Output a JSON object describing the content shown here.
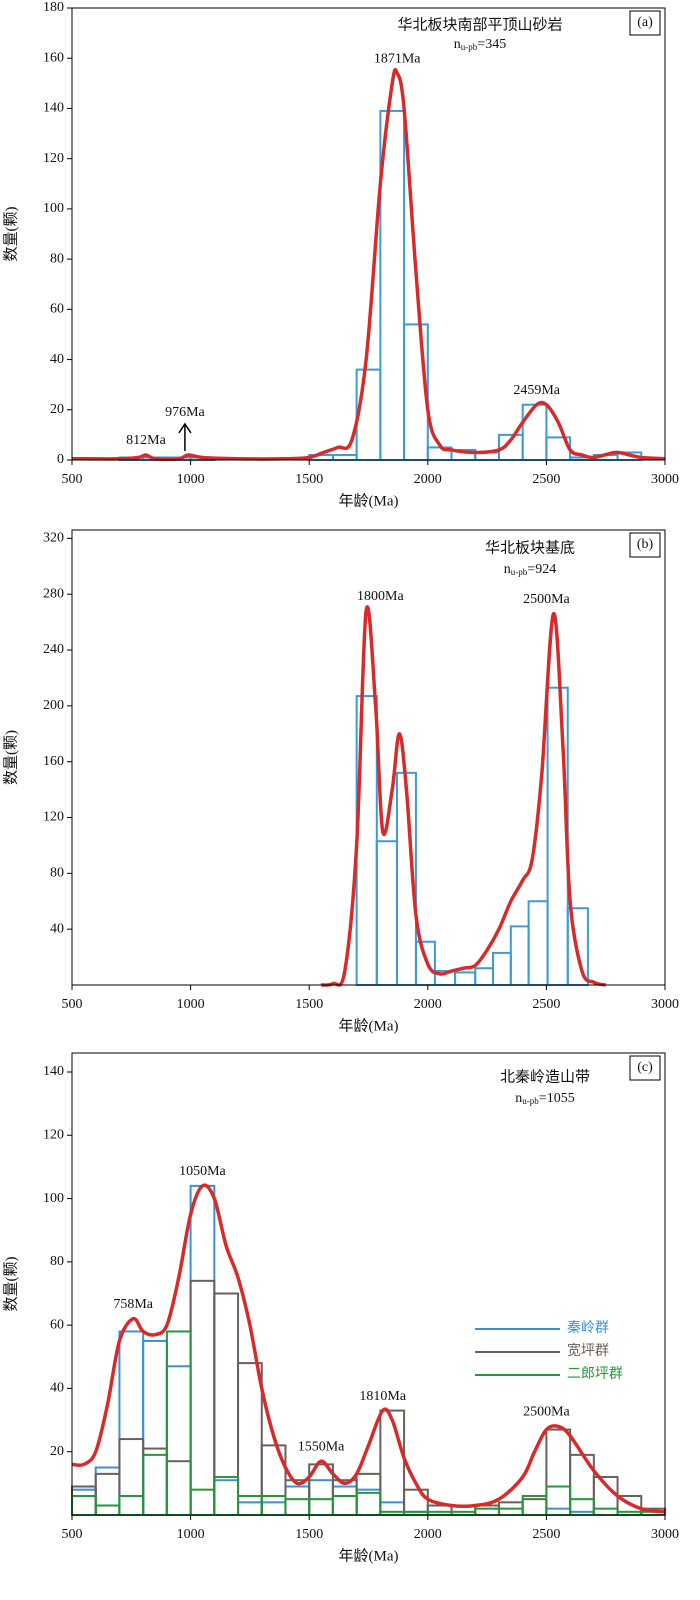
{
  "chart_data": [
    {
      "type": "histogram",
      "title": "华北板块南部平顶山砂岩",
      "label": "(a)",
      "sample_size": {
        "prefix": "n",
        "subscript": "u-pb",
        "suffix": "=345"
      },
      "x_label": "年龄(Ma)",
      "y_label": "数量(颗)",
      "xlim": [
        500,
        3000
      ],
      "ylim": [
        0,
        180
      ],
      "xticks": [
        500,
        1000,
        1500,
        2000,
        2500,
        3000
      ],
      "yticks": [
        0,
        20,
        40,
        60,
        80,
        100,
        120,
        140,
        160,
        180
      ],
      "bins": [
        700,
        800,
        900,
        1000,
        1100,
        1200,
        1300,
        1400,
        1500,
        1600,
        1700,
        1800,
        1900,
        2000,
        2100,
        2200,
        2300,
        2400,
        2500,
        2600,
        2700,
        2800,
        2900
      ],
      "values": [
        1,
        1,
        1,
        1,
        0,
        0,
        0,
        0,
        2,
        2,
        36,
        139,
        54,
        5,
        4,
        3,
        10,
        22,
        9,
        1,
        2,
        3
      ],
      "color": "#3d9ad6",
      "curve": {
        "color": "#d62b2b",
        "x": [
          500,
          700,
          780,
          812,
          850,
          950,
          990,
          1050,
          1200,
          1400,
          1500,
          1560,
          1620,
          1680,
          1740,
          1800,
          1850,
          1871,
          1900,
          1950,
          2000,
          2050,
          2100,
          2200,
          2300,
          2350,
          2400,
          2459,
          2500,
          2550,
          2600,
          2650,
          2700,
          2790,
          2850,
          2900,
          3000
        ],
        "y": [
          0.5,
          0.5,
          1,
          2,
          0.5,
          0.5,
          2,
          1,
          0.5,
          0.5,
          1,
          3,
          5,
          8,
          40,
          110,
          150,
          154,
          140,
          75,
          20,
          6,
          4,
          3,
          4,
          8,
          15,
          22,
          22,
          15,
          4,
          2,
          1,
          3,
          2,
          1,
          0.5
        ]
      },
      "peaks": [
        {
          "value": 812,
          "label": "812Ma"
        },
        {
          "value": 976,
          "label": "976Ma",
          "arrow": true
        },
        {
          "value": 1871,
          "label": "1871Ma"
        },
        {
          "value": 2459,
          "label": "2459Ma"
        }
      ]
    },
    {
      "type": "histogram",
      "title": "华北板块基底",
      "label": "(b)",
      "sample_size": {
        "prefix": "n",
        "subscript": "u-pb",
        "suffix": "=924"
      },
      "x_label": "年龄(Ma)",
      "y_label": "数量(颗)",
      "xlim": [
        500,
        3000
      ],
      "ylim": [
        0,
        326
      ],
      "xticks": [
        500,
        1000,
        1500,
        2000,
        2500,
        3000
      ],
      "yticks": [
        40,
        80,
        120,
        160,
        200,
        240,
        280,
        320
      ],
      "bins": [
        1700,
        1785,
        1870,
        1950,
        2030,
        2115,
        2200,
        2275,
        2350,
        2425,
        2505,
        2590,
        2675
      ],
      "values": [
        207,
        103,
        152,
        31,
        10,
        9,
        12,
        23,
        42,
        60,
        213,
        55
      ],
      "color": "#3d9ad6",
      "curve": {
        "color": "#d62b2b",
        "x": [
          1550,
          1600,
          1650,
          1700,
          1740,
          1780,
          1810,
          1850,
          1880,
          1910,
          1950,
          2000,
          2050,
          2100,
          2150,
          2200,
          2250,
          2300,
          2350,
          2400,
          2440,
          2480,
          2530,
          2570,
          2600,
          2650,
          2700,
          2750
        ],
        "y": [
          0,
          1,
          10,
          100,
          268,
          200,
          110,
          140,
          180,
          140,
          50,
          15,
          8,
          10,
          12,
          14,
          25,
          40,
          60,
          75,
          90,
          150,
          266,
          170,
          60,
          10,
          2,
          0
        ]
      },
      "peaks": [
        {
          "value": 1800,
          "label": "1800Ma"
        },
        {
          "value": 2500,
          "label": "2500Ma"
        }
      ]
    },
    {
      "type": "histogram",
      "title": "北秦岭造山带",
      "label": "(c)",
      "sample_size": {
        "prefix": "n",
        "subscript": "u-pb",
        "suffix": "=1055"
      },
      "x_label": "年龄(Ma)",
      "y_label": "数量(颗)",
      "xlim": [
        500,
        3000
      ],
      "ylim": [
        0,
        146
      ],
      "xticks": [
        500,
        1000,
        1500,
        2000,
        2500,
        3000
      ],
      "yticks": [
        20,
        40,
        60,
        80,
        100,
        120,
        140
      ],
      "bins": [
        500,
        600,
        700,
        800,
        900,
        1000,
        1100,
        1200,
        1300,
        1400,
        1500,
        1600,
        1700,
        1800,
        1900,
        2000,
        2100,
        2200,
        2300,
        2400,
        2500,
        2600,
        2700,
        2800,
        2900,
        3000
      ],
      "legend": "right",
      "series": [
        {
          "name": "秦岭群",
          "color": "#3d8fd6",
          "values": [
            8,
            15,
            58,
            55,
            47,
            104,
            11,
            4,
            4,
            9,
            11,
            9,
            8,
            4,
            1,
            0,
            0,
            0,
            0,
            0,
            2,
            1,
            0,
            0,
            0
          ]
        },
        {
          "name": "宽坪群",
          "color": "#6b5f5a",
          "values": [
            9,
            13,
            24,
            21,
            17,
            74,
            70,
            48,
            22,
            11,
            16,
            11,
            13,
            33,
            8,
            3,
            3,
            3,
            4,
            5,
            27,
            19,
            12,
            6,
            2
          ]
        },
        {
          "name": "二郎坪群",
          "color": "#25973a",
          "values": [
            6,
            3,
            6,
            19,
            58,
            8,
            12,
            6,
            6,
            5,
            5,
            6,
            7,
            1,
            1,
            1,
            1,
            2,
            2,
            6,
            9,
            5,
            2,
            1,
            1
          ]
        }
      ],
      "curve": {
        "color": "#d62b2b",
        "x": [
          500,
          550,
          600,
          650,
          700,
          758,
          800,
          850,
          900,
          950,
          1000,
          1050,
          1100,
          1150,
          1200,
          1250,
          1300,
          1350,
          1400,
          1450,
          1500,
          1550,
          1600,
          1650,
          1700,
          1750,
          1810,
          1850,
          1900,
          1950,
          2000,
          2100,
          2200,
          2300,
          2400,
          2450,
          2500,
          2550,
          2600,
          2700,
          2800,
          2900,
          3000
        ],
        "y": [
          16,
          16,
          20,
          35,
          55,
          62,
          58,
          57,
          60,
          75,
          95,
          104,
          100,
          85,
          75,
          60,
          40,
          25,
          15,
          10,
          12,
          17,
          13,
          10,
          13,
          22,
          33,
          30,
          18,
          10,
          5,
          3,
          3,
          5,
          12,
          20,
          27,
          28,
          25,
          14,
          6,
          2,
          1
        ]
      },
      "peaks": [
        {
          "value": 758,
          "label": "758Ma"
        },
        {
          "value": 1050,
          "label": "1050Ma"
        },
        {
          "value": 1550,
          "label": "1550Ma"
        },
        {
          "value": 1810,
          "label": "1810Ma"
        },
        {
          "value": 2500,
          "label": "2500Ma"
        }
      ]
    }
  ]
}
